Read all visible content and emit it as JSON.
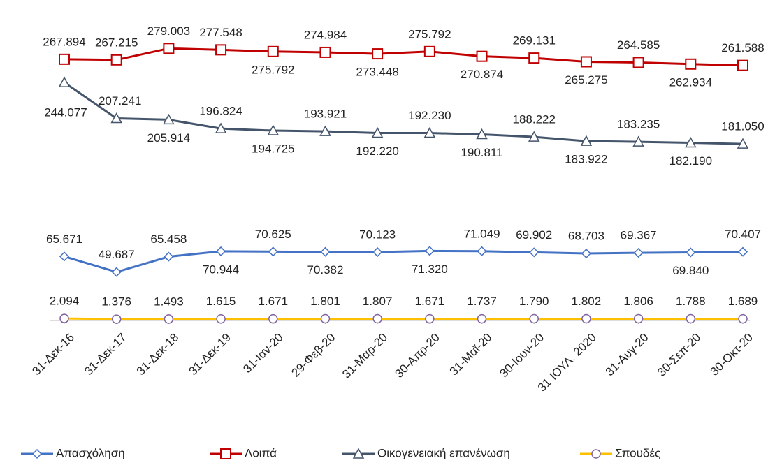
{
  "chart_data": {
    "type": "line",
    "categories": [
      "31-Δεκ-16",
      "31-Δεκ-17",
      "31-Δεκ-18",
      "31-Δεκ-19",
      "31-Ιαν-20",
      "29-Φεβ-20",
      "31-Μαρ-20",
      "30-Απρ-20",
      "31-Μαϊ-20",
      "30-Ιουν-20",
      "31 ΙΟΥΛ. 2020",
      "31-Αυγ-20",
      "30-Σεπ-20",
      "30-Οκτ-20"
    ],
    "ylim": [
      0,
      300000
    ],
    "legend": "bottom",
    "series": [
      {
        "name": "Απασχόληση",
        "color": "#4472c4",
        "marker": "diamond",
        "values": [
          65671,
          49687,
          65458,
          70944,
          70625,
          70382,
          70123,
          71320,
          71049,
          69902,
          68703,
          69367,
          69840,
          70407
        ],
        "value_labels": [
          "65.671",
          "49.687",
          "65.458",
          "70.944",
          "70.625",
          "70.382",
          "70.123",
          "71.320",
          "71.049",
          "69.902",
          "68.703",
          "69.367",
          "69.840",
          "70.407"
        ]
      },
      {
        "name": "Λοιπά",
        "color": "#c00000",
        "marker": "square",
        "values": [
          267894,
          267215,
          279003,
          277548,
          275792,
          274984,
          273448,
          275792,
          270874,
          269131,
          265275,
          264585,
          262934,
          261588
        ],
        "value_labels": [
          "267.894",
          "267.215",
          "279.003",
          "277.548",
          "275.792",
          "274.984",
          "273.448",
          "275.792",
          "270.874",
          "269.131",
          "265.275",
          "264.585",
          "262.934",
          "261.588"
        ]
      },
      {
        "name": "Οικογενειακή επανένωση",
        "color": "#44546a",
        "marker": "triangle",
        "values": [
          244077,
          207241,
          205914,
          196824,
          194725,
          193921,
          192220,
          192230,
          190811,
          188222,
          183922,
          183235,
          182190,
          181050
        ],
        "value_labels": [
          "244.077",
          "207.241",
          "205.914",
          "196.824",
          "194.725",
          "193.921",
          "192.220",
          "192.230",
          "190.811",
          "188.222",
          "183.922",
          "183.235",
          "182.190",
          "181.050"
        ]
      },
      {
        "name": "Σπουδές",
        "color": "#ffc000",
        "marker": "circle",
        "values": [
          2094,
          1376,
          1493,
          1615,
          1671,
          1801,
          1807,
          1671,
          1737,
          1790,
          1802,
          1806,
          1788,
          1689
        ],
        "value_labels": [
          "2.094",
          "1.376",
          "1.493",
          "1.615",
          "1.671",
          "1.801",
          "1.807",
          "1.671",
          "1.737",
          "1.790",
          "1.802",
          "1.806",
          "1.788",
          "1.689"
        ]
      }
    ]
  }
}
